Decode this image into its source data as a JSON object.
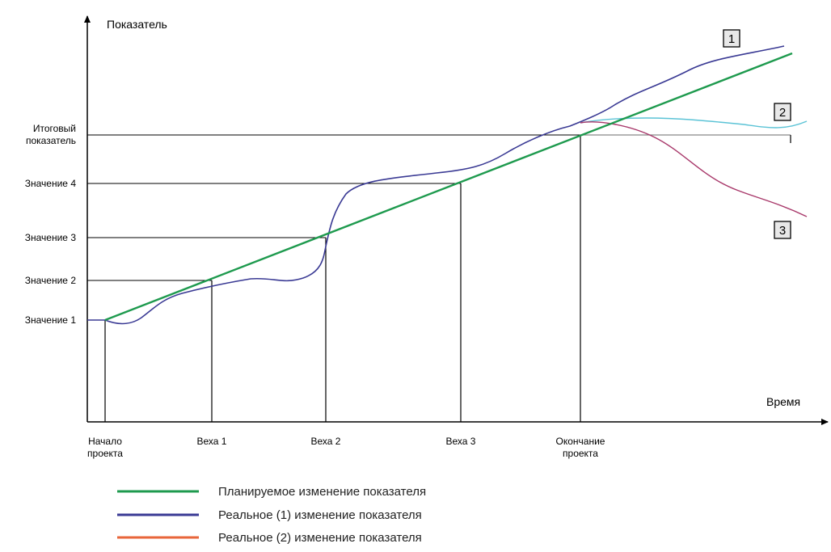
{
  "chart_data": {
    "type": "line",
    "y_axis_label": "Показатель",
    "x_axis_label": "Время",
    "x_ticks": [
      {
        "id": "start",
        "lines": [
          "Начало",
          "проекта"
        ]
      },
      {
        "id": "m1",
        "lines": [
          "Веха 1"
        ]
      },
      {
        "id": "m2",
        "lines": [
          "Веха 2"
        ]
      },
      {
        "id": "m3",
        "lines": [
          "Веха 3"
        ]
      },
      {
        "id": "end",
        "lines": [
          "Окончание",
          "проекта"
        ]
      }
    ],
    "y_ticks": [
      {
        "id": "v1",
        "lines": [
          "Значение 1"
        ]
      },
      {
        "id": "v2",
        "lines": [
          "Значение 2"
        ]
      },
      {
        "id": "v3",
        "lines": [
          "Значение 3"
        ]
      },
      {
        "id": "v4",
        "lines": [
          "Значение 4"
        ]
      },
      {
        "id": "final",
        "lines": [
          "Итоговый",
          "показатель"
        ]
      }
    ],
    "series": [
      {
        "name": "Планируемое изменение показателя",
        "color": "#1e9a4e"
      },
      {
        "name": "Реальное (1) изменение показателя",
        "color": "#3a3a94"
      },
      {
        "name": "Реальное (2) изменение показателя",
        "color": "#e8663a"
      }
    ],
    "curve_labels": [
      "1",
      "2",
      "3"
    ],
    "colors": {
      "planned": "#1e9a4e",
      "real1": "#3a3a94",
      "real2": "#e8663a",
      "curve2": "#5bc3d6",
      "curve3": "#a8386a",
      "axis": "#000000",
      "guide": "#000000",
      "final_guide": "#888888"
    }
  }
}
